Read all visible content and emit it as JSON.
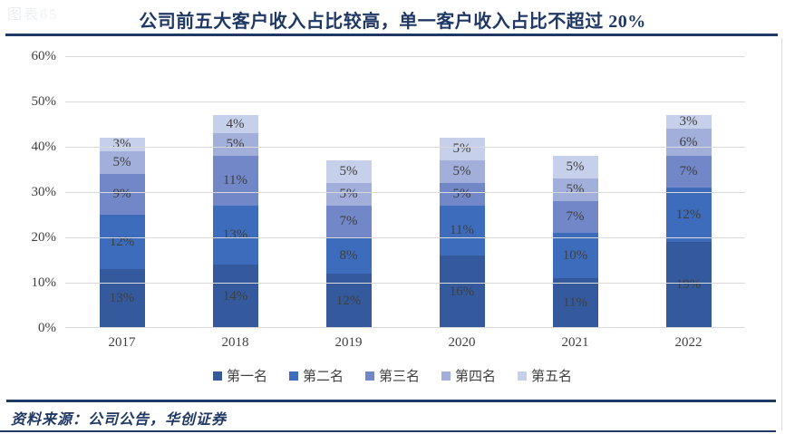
{
  "page": {
    "watermark": "图表65",
    "title": "公司前五大客户收入占比较高，单一客户收入占比不超过 20%",
    "source_label": "资料来源：公司公告，华创证券"
  },
  "colors": {
    "title": "#1F3864",
    "rule": "#1F3864",
    "gridline": "#D9D9D9",
    "axis_text": "#404040",
    "data_label_text": "#3F3F3F",
    "series": [
      "#345A9D",
      "#3E6CBC",
      "#7187C8",
      "#A2AFDA",
      "#C6D0EA"
    ]
  },
  "chart_data": {
    "type": "bar",
    "stacked": true,
    "title": "公司前五大客户收入占比较高，单一客户收入占比不超过 20%",
    "xlabel": "",
    "ylabel": "",
    "categories": [
      "2017",
      "2018",
      "2019",
      "2020",
      "2021",
      "2022"
    ],
    "series": [
      {
        "name": "第一名",
        "values": [
          13,
          14,
          12,
          16,
          11,
          19
        ]
      },
      {
        "name": "第二名",
        "values": [
          12,
          13,
          8,
          11,
          10,
          12
        ]
      },
      {
        "name": "第三名",
        "values": [
          9,
          11,
          7,
          5,
          7,
          7
        ]
      },
      {
        "name": "第四名",
        "values": [
          5,
          5,
          5,
          5,
          5,
          6
        ]
      },
      {
        "name": "第五名",
        "values": [
          3,
          4,
          5,
          5,
          5,
          3
        ]
      }
    ],
    "stack_totals": [
      42,
      47,
      37,
      42,
      38,
      47
    ],
    "data_label_suffix": "%",
    "ylim": [
      0,
      60
    ],
    "ytick_values": [
      0,
      10,
      20,
      30,
      40,
      50,
      60
    ],
    "ytick_labels": [
      "0%",
      "10%",
      "20%",
      "30%",
      "40%",
      "50%",
      "60%"
    ],
    "grid": true,
    "legend_position": "bottom",
    "legend_labels": [
      "第一名",
      "第二名",
      "第三名",
      "第四名",
      "第五名"
    ]
  }
}
